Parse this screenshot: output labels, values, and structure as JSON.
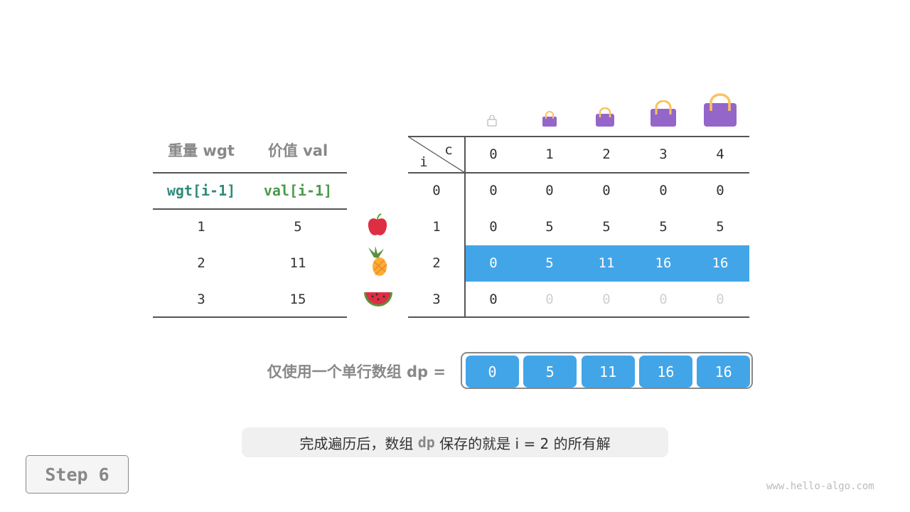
{
  "left_table": {
    "headers": [
      "重量 wgt",
      "价值 val"
    ],
    "subheaders": [
      "wgt[i-1]",
      "val[i-1]"
    ],
    "rows": [
      [
        "1",
        "5"
      ],
      [
        "2",
        "11"
      ],
      [
        "3",
        "15"
      ]
    ],
    "item_icons": [
      "apple-icon",
      "pineapple-icon",
      "watermelon-icon"
    ]
  },
  "dp_table": {
    "corner_c": "c",
    "corner_i": "i",
    "cols": [
      "0",
      "1",
      "2",
      "3",
      "4"
    ],
    "rows": [
      {
        "i": "0",
        "v": [
          "0",
          "0",
          "0",
          "0",
          "0"
        ]
      },
      {
        "i": "1",
        "v": [
          "0",
          "5",
          "5",
          "5",
          "5"
        ]
      },
      {
        "i": "2",
        "v": [
          "0",
          "5",
          "11",
          "16",
          "16"
        ]
      },
      {
        "i": "3",
        "v": [
          "0",
          "0",
          "0",
          "0",
          "0"
        ]
      }
    ],
    "highlight_row": 2,
    "highlight_color": "#42a5e8",
    "faded_color": "#d0d0d0"
  },
  "dp_array": {
    "label": "仅使用一个单行数组 dp =",
    "values": [
      "0",
      "5",
      "11",
      "16",
      "16"
    ]
  },
  "caption": {
    "pre": "完成遍历后，数组 ",
    "code": "dp",
    "post": " 保存的就是 i = 2 的所有解"
  },
  "step_label": "Step 6",
  "watermark": "www.hello-algo.com"
}
